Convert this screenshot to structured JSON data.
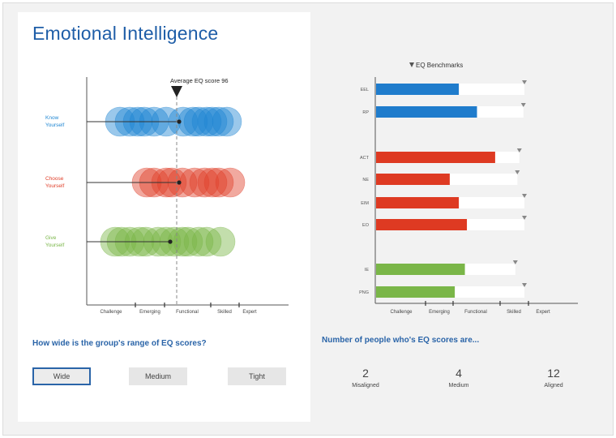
{
  "title": "Emotional Intelligence",
  "colors": {
    "blue": "#1f86d2",
    "red": "#e0402b",
    "green": "#7ab648",
    "title": "#1f5ea8",
    "accent": "#2a64a8"
  },
  "chart_data": [
    {
      "type": "scatter",
      "title": "",
      "annotation": "Average EQ score   96",
      "average_score": 96,
      "x_categories": [
        "Challenge",
        "Emerging",
        "Functional",
        "Skilled",
        "Expert"
      ],
      "rows": [
        {
          "label_line1": "Know",
          "label_line2": "Yourself",
          "color": "#1f86d2"
        },
        {
          "label_line1": "Choose",
          "label_line2": "Yourself",
          "color": "#e0402b"
        },
        {
          "label_line1": "Give",
          "label_line2": "Yourself",
          "color": "#7ab648"
        }
      ]
    },
    {
      "type": "bar",
      "title": "EQ Benchmarks",
      "title_icon": "triangle-down-icon",
      "x_categories": [
        "Challenge",
        "Emerging",
        "Functional",
        "Skilled",
        "Expert"
      ],
      "bars": [
        {
          "label": "EEL",
          "score_pct": 41,
          "benchmark_pct": 73.5,
          "color": "#1f7ccc"
        },
        {
          "label": "RP",
          "score_pct": 50,
          "benchmark_pct": 73,
          "color": "#1f7ccc"
        },
        {
          "label": "ACT",
          "score_pct": 59,
          "benchmark_pct": 71,
          "color": "#de3a22"
        },
        {
          "label": "NE",
          "score_pct": 36.5,
          "benchmark_pct": 70,
          "color": "#de3a22"
        },
        {
          "label": "EIM",
          "score_pct": 41,
          "benchmark_pct": 73.5,
          "color": "#de3a22"
        },
        {
          "label": "EO",
          "score_pct": 45,
          "benchmark_pct": 73.5,
          "color": "#de3a22"
        },
        {
          "label": "IE",
          "score_pct": 44,
          "benchmark_pct": 69,
          "color": "#7ab648"
        },
        {
          "label": "PNG",
          "score_pct": 39,
          "benchmark_pct": 73.5,
          "color": "#7ab648"
        }
      ]
    }
  ],
  "range_question": "How wide is the group's range of EQ scores?",
  "range_options": [
    {
      "label": "Wide",
      "selected": true
    },
    {
      "label": "Medium",
      "selected": false
    },
    {
      "label": "Tight",
      "selected": false
    }
  ],
  "count_heading": "Number of people who's EQ scores are...",
  "counts": [
    {
      "value": "2",
      "label": "Misaligned"
    },
    {
      "value": "4",
      "label": "Medium"
    },
    {
      "value": "12",
      "label": "Aligned"
    }
  ]
}
